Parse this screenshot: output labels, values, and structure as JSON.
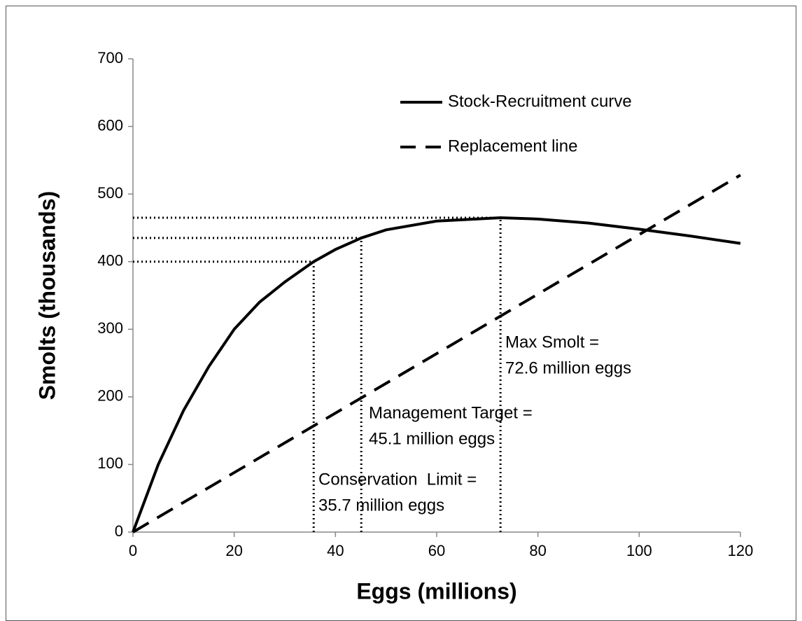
{
  "chart_data": {
    "type": "line",
    "xlabel": "Eggs (millions)",
    "ylabel": "Smolts (thousands)",
    "xlim": [
      0,
      120
    ],
    "ylim": [
      0,
      700
    ],
    "xticks": [
      0,
      20,
      40,
      60,
      80,
      100,
      120
    ],
    "yticks": [
      0,
      100,
      200,
      300,
      400,
      500,
      600,
      700
    ],
    "grid": false,
    "legend": "top",
    "series": [
      {
        "name": "Stock-Recruitment curve",
        "color": "#000000",
        "style": "solid",
        "x": [
          0,
          5,
          10,
          15,
          20,
          25,
          30,
          35.7,
          40,
          45.1,
          50,
          60,
          72.6,
          80,
          90,
          100,
          110,
          120
        ],
        "values": [
          0,
          100,
          180,
          245,
          300,
          340,
          370,
          400,
          418,
          435,
          447,
          460,
          465,
          463,
          457,
          448,
          438,
          427
        ]
      },
      {
        "name": "Replacement line",
        "color": "#000000",
        "style": "dashed",
        "x": [
          0,
          120
        ],
        "values": [
          0,
          528
        ]
      }
    ],
    "reference_points": [
      {
        "x": 35.7,
        "y": 400
      },
      {
        "x": 45.1,
        "y": 435
      },
      {
        "x": 72.6,
        "y": 465
      }
    ],
    "annotations": [
      [
        "Conservation  Limit =",
        "35.7 million eggs"
      ],
      [
        "Management Target =",
        "45.1 million eggs"
      ],
      [
        "Max Smolt =",
        "72.6 million eggs"
      ]
    ]
  }
}
